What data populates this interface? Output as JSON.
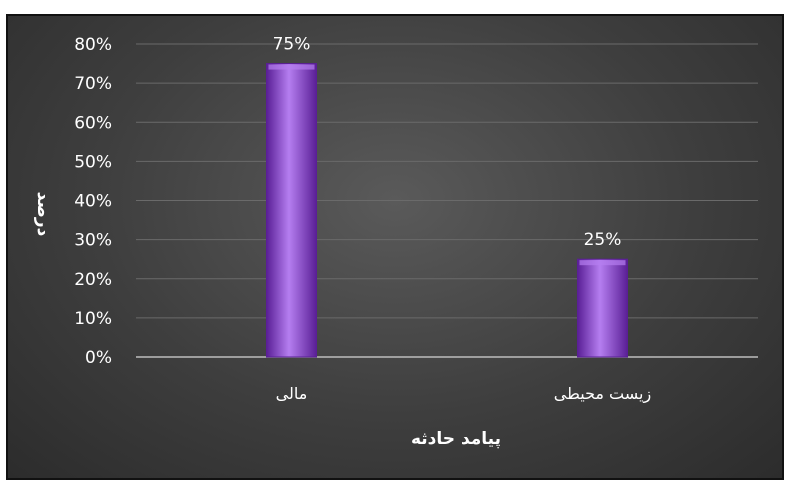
{
  "chart_data": {
    "type": "bar",
    "categories": [
      "مالی",
      "زیست محیطی"
    ],
    "values": [
      75,
      25
    ],
    "data_labels": [
      "75%",
      "25%"
    ],
    "xlabel": "پیامد حادثه",
    "ylabel": "درصد",
    "ylim": [
      0,
      80
    ],
    "y_ticks": [
      "0%",
      "10%",
      "20%",
      "30%",
      "40%",
      "50%",
      "60%",
      "70%",
      "80%"
    ],
    "grid": true,
    "legend": "none",
    "colors": {
      "bar": "#8a3fd0",
      "bar_light": "#b57ef0",
      "bar_dark": "#5a1f96",
      "background": "#404040",
      "grid": "#6a6a6a",
      "text": "#ffffff"
    }
  }
}
